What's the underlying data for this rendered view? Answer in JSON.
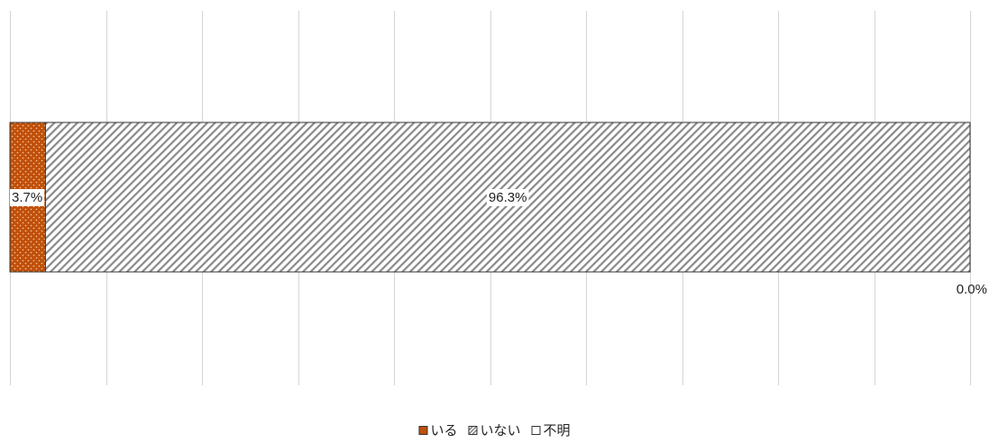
{
  "chart_data": {
    "type": "bar",
    "orientation": "horizontal",
    "stacked": "percent",
    "categories": [
      ""
    ],
    "series": [
      {
        "name": "いる",
        "values": [
          3.7
        ],
        "label": "3.7%",
        "color": "#c0500a",
        "pattern": "dots"
      },
      {
        "name": "いない",
        "values": [
          96.3
        ],
        "label": "96.3%",
        "color": "#8a8a8a",
        "pattern": "diagonal-hatch"
      },
      {
        "name": "不明",
        "values": [
          0.0
        ],
        "label": "0.0%",
        "color": "#ffffff",
        "pattern": "none"
      }
    ],
    "xlim": [
      0,
      100
    ],
    "grid": "vertical",
    "legend": "bottom-center"
  }
}
